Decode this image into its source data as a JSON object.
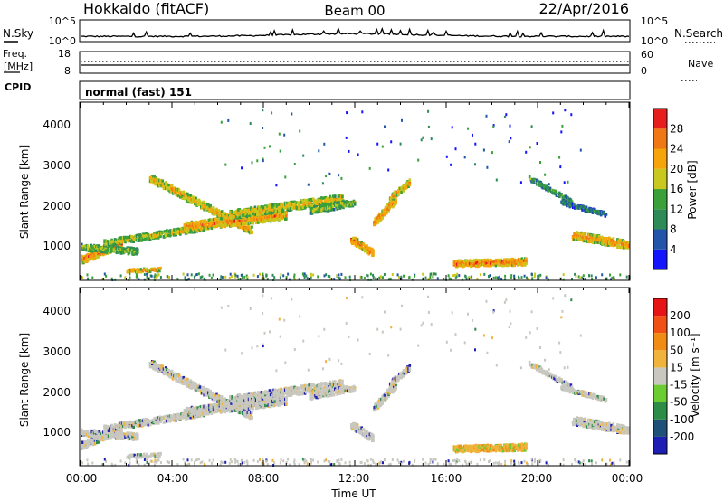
{
  "header": {
    "title": "Hokkaido (fitACF)",
    "beam": "Beam 00",
    "date": "22/Apr/2016"
  },
  "strip": {
    "nsky_label": "N.Sky",
    "nsearch_label": "N.Search",
    "freq_label": "Freq.",
    "freq_unit": "[MHz]",
    "nave_label": "Nave",
    "cpid_label": "CPID",
    "cpid_value": "normal (fast) 151",
    "noise_ticks_left": [
      "10^5",
      "10^0"
    ],
    "noise_ticks_right": [
      "10^5",
      "10^0"
    ],
    "freq_ticks": [
      "18",
      "8"
    ],
    "nave_ticks": [
      "60",
      "0"
    ]
  },
  "chart_data": [
    {
      "type": "heatmap",
      "name": "power",
      "ylabel": "Slant Range [km]",
      "yticks": [
        "1000",
        "2000",
        "3000",
        "4000"
      ],
      "ylim": [
        180,
        4500
      ],
      "colorbar_label": "Power [dB]",
      "colorbar_ticks": [
        "4",
        "8",
        "12",
        "16",
        "20",
        "24",
        "28"
      ],
      "colors": [
        "#1414ff",
        "#2255aa",
        "#2e8b57",
        "#3aa03a",
        "#c8c81e",
        "#f5a50a",
        "#f07814",
        "#e61e1e"
      ]
    },
    {
      "type": "heatmap",
      "name": "velocity",
      "ylabel": "Slant Range [km]",
      "yticks": [
        "1000",
        "2000",
        "3000",
        "4000"
      ],
      "ylim": [
        180,
        4500
      ],
      "colorbar_label": "Velocity [m s⁻¹]",
      "colorbar_ticks": [
        "200",
        "100",
        "50",
        "15",
        "-15",
        "-50",
        "-100",
        "-200"
      ],
      "colors": [
        "#1e1eb4",
        "#1e5078",
        "#2d8c46",
        "#6ccd32",
        "#c8c8c0",
        "#f0b43c",
        "#f08c14",
        "#f05014",
        "#e61414"
      ]
    }
  ],
  "xaxis": {
    "ticks": [
      "00:00",
      "04:00",
      "08:00",
      "12:00",
      "16:00",
      "20:00",
      "00:00"
    ],
    "label": "Time UT"
  }
}
